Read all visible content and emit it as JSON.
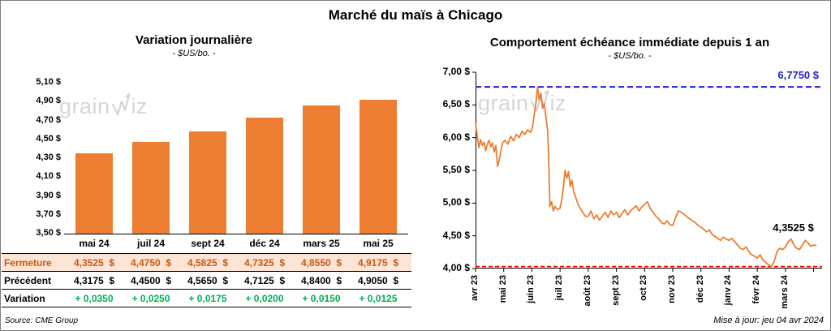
{
  "page": {
    "title": "Marché du maïs à Chicago",
    "source_note": "Source: CME Group",
    "updated_note": "Mise à jour: jeu 04 avr 2024",
    "watermark": {
      "name": "grainwiz",
      "prefix": "grain",
      "suffix": "iz"
    }
  },
  "chart_data": [
    {
      "type": "bar",
      "title": "Variation journalière",
      "subtitle": "- $US/bo. -",
      "categories": [
        "mai 24",
        "juil 24",
        "sept 24",
        "déc 24",
        "mars 25",
        "mai 25"
      ],
      "values": [
        4.3525,
        4.475,
        4.5825,
        4.7325,
        4.855,
        4.9175
      ],
      "ylim": [
        3.5,
        5.1
      ],
      "ytick_step": 0.2,
      "ytick_labels": [
        "3,50 $",
        "3,70 $",
        "3,90 $",
        "4,10 $",
        "4,30 $",
        "4,50 $",
        "4,70 $",
        "4,90 $",
        "5,10 $"
      ],
      "bar_color": "#ED7D31",
      "table": {
        "highlight_bg": "#FCE4D6",
        "rows": [
          {
            "label": "Fermeture",
            "label_color": "#C55A11",
            "value_color": "#C55A11",
            "values": [
              "4,3525  $",
              "4,4750  $",
              "4,5825  $",
              "4,7325  $",
              "4,8550  $",
              "4,9175  $"
            ]
          },
          {
            "label": "Précédent",
            "label_color": "#000000",
            "value_color": "#000000",
            "values": [
              "4,3175  $",
              "4,4500  $",
              "4,5650  $",
              "4,7125  $",
              "4,8400  $",
              "4,9050  $"
            ]
          },
          {
            "label": "Variation",
            "label_color": "#000000",
            "value_color": "#00B050",
            "values": [
              "+ 0,0350",
              "+ 0,0250",
              "+ 0,0175",
              "+ 0,0200",
              "+ 0,0150",
              "+ 0,0125"
            ]
          }
        ]
      }
    },
    {
      "type": "line",
      "title": "Comportement échéance immédiate depuis 1 an",
      "subtitle": "- $US/bo. -",
      "line_color": "#ED7D31",
      "ylim": [
        4.0,
        7.0
      ],
      "ytick_step": 0.5,
      "ytick_labels": [
        "4,00 $",
        "4,50 $",
        "5,00 $",
        "5,50 $",
        "6,00 $",
        "6,50 $",
        "7,00 $"
      ],
      "x_labels": [
        "avr 23",
        "mai 23",
        "juin 23",
        "juil 23",
        "août 23",
        "sept 23",
        "oct 23",
        "nov 23",
        "déc 23",
        "janv 24",
        "févr 24",
        "mars 24"
      ],
      "xlim": [
        0,
        12.3
      ],
      "max_line": {
        "value": 6.775,
        "label": "6,7750 $",
        "color": "#2222CC"
      },
      "min_line": {
        "value": 4.03,
        "color": "#FF0000"
      },
      "last_label": {
        "text": "4,3525 $",
        "x": 10.55,
        "y": 4.62
      },
      "points": [
        [
          0,
          6.22
        ],
        [
          0.06,
          6.02
        ],
        [
          0.12,
          5.85
        ],
        [
          0.18,
          5.97
        ],
        [
          0.24,
          5.88
        ],
        [
          0.3,
          5.93
        ],
        [
          0.36,
          5.8
        ],
        [
          0.42,
          5.9
        ],
        [
          0.48,
          5.96
        ],
        [
          0.54,
          5.86
        ],
        [
          0.6,
          5.92
        ],
        [
          0.66,
          5.78
        ],
        [
          0.72,
          5.88
        ],
        [
          0.78,
          5.56
        ],
        [
          0.84,
          5.66
        ],
        [
          0.9,
          5.8
        ],
        [
          0.96,
          5.92
        ],
        [
          1.05,
          5.96
        ],
        [
          1.15,
          5.9
        ],
        [
          1.25,
          6.02
        ],
        [
          1.35,
          5.95
        ],
        [
          1.45,
          6.05
        ],
        [
          1.55,
          6.0
        ],
        [
          1.65,
          6.1
        ],
        [
          1.75,
          6.05
        ],
        [
          1.85,
          6.12
        ],
        [
          1.95,
          6.08
        ],
        [
          2.02,
          6.15
        ],
        [
          2.08,
          6.35
        ],
        [
          2.14,
          6.52
        ],
        [
          2.2,
          6.77
        ],
        [
          2.26,
          6.58
        ],
        [
          2.32,
          6.68
        ],
        [
          2.38,
          6.45
        ],
        [
          2.44,
          6.52
        ],
        [
          2.5,
          6.3
        ],
        [
          2.56,
          6.1
        ],
        [
          2.6,
          5.6
        ],
        [
          2.64,
          4.95
        ],
        [
          2.7,
          5.02
        ],
        [
          2.76,
          4.88
        ],
        [
          2.82,
          4.95
        ],
        [
          2.9,
          4.9
        ],
        [
          3.0,
          4.92
        ],
        [
          3.06,
          5.05
        ],
        [
          3.12,
          5.25
        ],
        [
          3.18,
          5.5
        ],
        [
          3.24,
          5.38
        ],
        [
          3.3,
          5.48
        ],
        [
          3.36,
          5.25
        ],
        [
          3.42,
          5.35
        ],
        [
          3.48,
          5.18
        ],
        [
          3.56,
          5.08
        ],
        [
          3.64,
          4.98
        ],
        [
          3.72,
          4.92
        ],
        [
          3.8,
          4.86
        ],
        [
          3.9,
          4.8
        ],
        [
          4.0,
          4.8
        ],
        [
          4.1,
          4.88
        ],
        [
          4.2,
          4.76
        ],
        [
          4.3,
          4.82
        ],
        [
          4.4,
          4.74
        ],
        [
          4.5,
          4.8
        ],
        [
          4.6,
          4.86
        ],
        [
          4.7,
          4.78
        ],
        [
          4.8,
          4.88
        ],
        [
          4.9,
          4.82
        ],
        [
          5.0,
          4.86
        ],
        [
          5.1,
          4.78
        ],
        [
          5.2,
          4.84
        ],
        [
          5.3,
          4.9
        ],
        [
          5.4,
          4.82
        ],
        [
          5.5,
          4.88
        ],
        [
          5.6,
          4.92
        ],
        [
          5.7,
          4.96
        ],
        [
          5.8,
          4.88
        ],
        [
          5.9,
          4.94
        ],
        [
          6.0,
          4.98
        ],
        [
          6.1,
          5.02
        ],
        [
          6.2,
          4.92
        ],
        [
          6.3,
          4.86
        ],
        [
          6.4,
          4.8
        ],
        [
          6.5,
          4.76
        ],
        [
          6.6,
          4.7
        ],
        [
          6.7,
          4.68
        ],
        [
          6.8,
          4.73
        ],
        [
          6.9,
          4.67
        ],
        [
          7.0,
          4.66
        ],
        [
          7.1,
          4.78
        ],
        [
          7.2,
          4.88
        ],
        [
          7.3,
          4.86
        ],
        [
          7.4,
          4.83
        ],
        [
          7.5,
          4.79
        ],
        [
          7.6,
          4.76
        ],
        [
          7.7,
          4.73
        ],
        [
          7.8,
          4.7
        ],
        [
          7.9,
          4.66
        ],
        [
          8.0,
          4.63
        ],
        [
          8.1,
          4.6
        ],
        [
          8.2,
          4.56
        ],
        [
          8.3,
          4.59
        ],
        [
          8.4,
          4.52
        ],
        [
          8.5,
          4.49
        ],
        [
          8.6,
          4.46
        ],
        [
          8.7,
          4.43
        ],
        [
          8.8,
          4.48
        ],
        [
          8.9,
          4.45
        ],
        [
          9.0,
          4.43
        ],
        [
          9.1,
          4.46
        ],
        [
          9.2,
          4.41
        ],
        [
          9.3,
          4.36
        ],
        [
          9.4,
          4.31
        ],
        [
          9.5,
          4.29
        ],
        [
          9.6,
          4.33
        ],
        [
          9.7,
          4.26
        ],
        [
          9.8,
          4.21
        ],
        [
          9.9,
          4.19
        ],
        [
          10.0,
          4.16
        ],
        [
          10.1,
          4.21
        ],
        [
          10.2,
          4.13
        ],
        [
          10.3,
          4.09
        ],
        [
          10.4,
          4.06
        ],
        [
          10.5,
          4.03
        ],
        [
          10.6,
          4.11
        ],
        [
          10.7,
          4.26
        ],
        [
          10.8,
          4.31
        ],
        [
          10.9,
          4.29
        ],
        [
          11.0,
          4.33
        ],
        [
          11.1,
          4.41
        ],
        [
          11.2,
          4.45
        ],
        [
          11.3,
          4.36
        ],
        [
          11.4,
          4.31
        ],
        [
          11.5,
          4.29
        ],
        [
          11.6,
          4.36
        ],
        [
          11.7,
          4.43
        ],
        [
          11.8,
          4.39
        ],
        [
          11.9,
          4.34
        ],
        [
          12.0,
          4.36
        ],
        [
          12.1,
          4.35
        ]
      ]
    }
  ]
}
